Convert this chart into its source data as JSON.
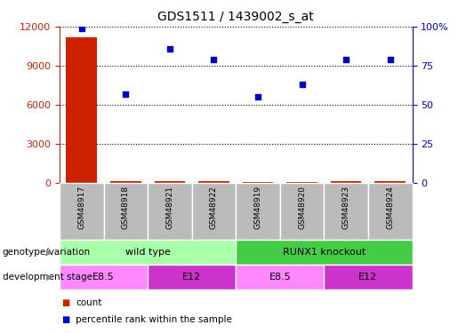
{
  "title": "GDS1511 / 1439002_s_at",
  "samples": [
    "GSM48917",
    "GSM48918",
    "GSM48921",
    "GSM48922",
    "GSM48919",
    "GSM48920",
    "GSM48923",
    "GSM48924"
  ],
  "counts": [
    11200,
    120,
    130,
    120,
    110,
    115,
    125,
    120
  ],
  "percentiles": [
    99,
    57,
    86,
    79,
    55,
    63,
    79,
    79
  ],
  "left_ylim": [
    0,
    12000
  ],
  "right_ylim": [
    0,
    100
  ],
  "left_yticks": [
    0,
    3000,
    6000,
    9000,
    12000
  ],
  "right_yticks": [
    0,
    25,
    50,
    75,
    100
  ],
  "right_yticklabels": [
    "0",
    "25",
    "50",
    "75",
    "100%"
  ],
  "bar_color": "#cc2200",
  "dot_color": "#0000cc",
  "tick_bg": "#bbbbbb",
  "genotype_row": {
    "groups": [
      {
        "label": "wild type",
        "start": 0,
        "end": 4,
        "color": "#aaffaa"
      },
      {
        "label": "RUNX1 knockout",
        "start": 4,
        "end": 8,
        "color": "#44cc44"
      }
    ]
  },
  "stage_row": {
    "groups": [
      {
        "label": "E8.5",
        "start": 0,
        "end": 2,
        "color": "#ff88ff"
      },
      {
        "label": "E12",
        "start": 2,
        "end": 4,
        "color": "#cc33cc"
      },
      {
        "label": "E8.5",
        "start": 4,
        "end": 6,
        "color": "#ff88ff"
      },
      {
        "label": "E12",
        "start": 6,
        "end": 8,
        "color": "#cc33cc"
      }
    ]
  },
  "legend_count_color": "#cc2200",
  "legend_pct_color": "#0000cc",
  "label_row1": "genotype/variation",
  "label_row2": "development stage",
  "legend_count_label": "count",
  "legend_pct_label": "percentile rank within the sample"
}
